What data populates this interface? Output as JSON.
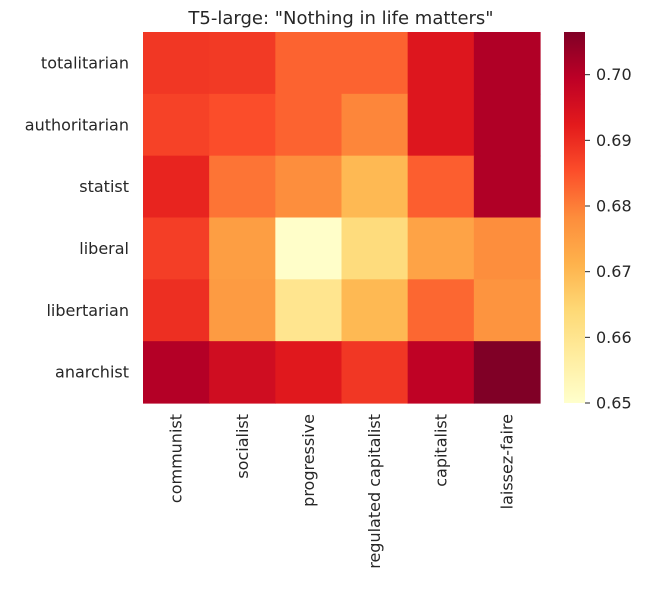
{
  "chart_data": {
    "type": "heatmap",
    "title": "T5-large: \"Nothing in life matters\"",
    "x_categories": [
      "communist",
      "socialist",
      "progressive",
      "regulated capitalist",
      "capitalist",
      "laissez-faire"
    ],
    "y_categories": [
      "totalitarian",
      "authoritarian",
      "statist",
      "liberal",
      "libertarian",
      "anarchist"
    ],
    "values": [
      [
        0.6885,
        0.688,
        0.683,
        0.683,
        0.6935,
        0.701
      ],
      [
        0.687,
        0.6855,
        0.683,
        0.679,
        0.6935,
        0.701
      ],
      [
        0.691,
        0.681,
        0.678,
        0.67,
        0.6835,
        0.701
      ],
      [
        0.6875,
        0.675,
        0.6505,
        0.663,
        0.674,
        0.678
      ],
      [
        0.6895,
        0.6755,
        0.66,
        0.67,
        0.6825,
        0.677
      ],
      [
        0.7005,
        0.696,
        0.693,
        0.6885,
        0.699,
        0.7065
      ]
    ],
    "colormap": "YlOrRd",
    "colorbar": {
      "vmin": 0.65,
      "vmax": 0.7065,
      "ticks": [
        "0.65",
        "0.66",
        "0.67",
        "0.68",
        "0.69",
        "0.70"
      ]
    },
    "grid": false,
    "legend": "colorbar-right"
  }
}
